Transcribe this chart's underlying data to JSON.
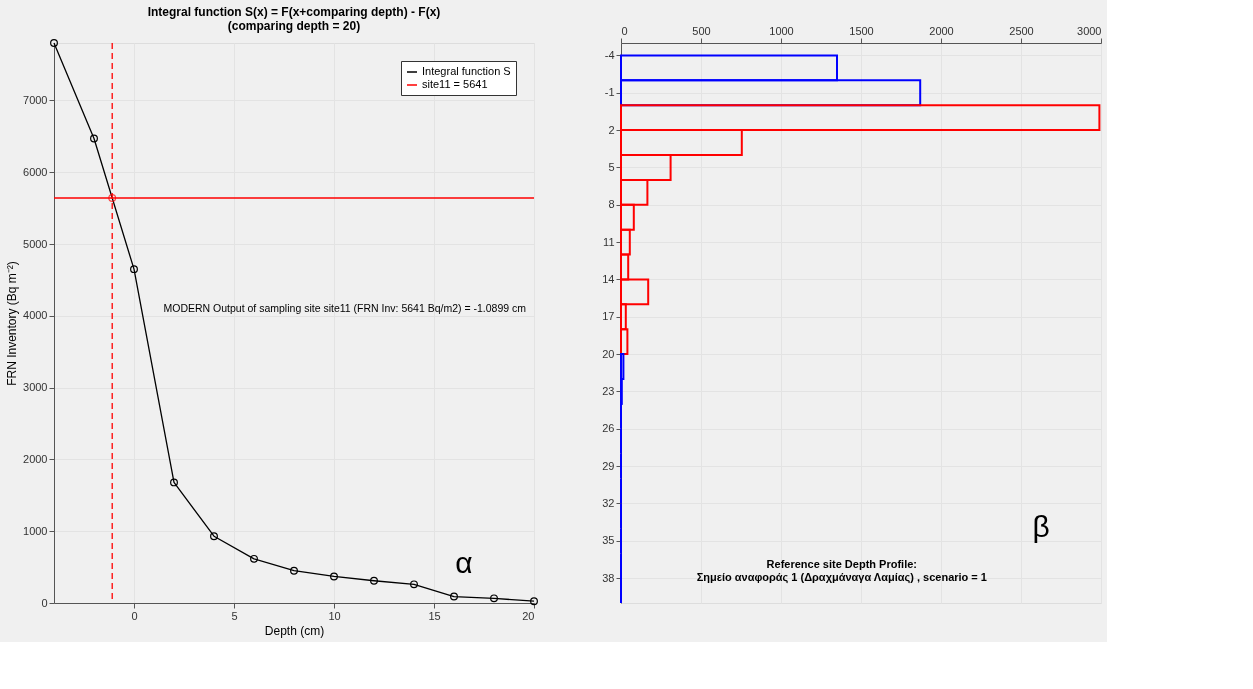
{
  "chart_data": [
    {
      "type": "line",
      "title": "Integral function S(x) = F(x+comparing depth) - F(x)\n(comparing depth = 20)",
      "xlabel": "Depth (cm)",
      "ylabel": "FRN Inventory (Bq m⁻²)",
      "x": [
        -4,
        -2,
        0,
        2,
        4,
        6,
        8,
        10,
        12,
        14,
        16,
        18,
        20
      ],
      "series": [
        {
          "name": "Integral function S",
          "color": "#000000",
          "values": [
            7800,
            6470,
            4650,
            1680,
            930,
            615,
            450,
            370,
            310,
            260,
            90,
            65,
            25
          ]
        },
        {
          "type": "scatter",
          "x": [
            -1.0899
          ],
          "color": "#ff0000",
          "values": [
            5641
          ]
        }
      ],
      "marker": "circle",
      "xlim": [
        -4,
        20
      ],
      "xticks": [
        0,
        5,
        10,
        15,
        20
      ],
      "ylim": [
        0,
        7800
      ],
      "yticks": [
        0,
        1000,
        2000,
        3000,
        4000,
        5000,
        6000,
        7000
      ],
      "ref_lines": [
        {
          "axis": "y",
          "value": 5641,
          "label": "site11 = 5641",
          "color": "#ff0000",
          "line_style": "solid"
        },
        {
          "axis": "x",
          "value": -1.0899,
          "color": "#ff0000",
          "line_style": "dashed"
        }
      ],
      "annotations": [
        "MODERN Output of sampling site site11 (FRN Inv: 5641 Bq/m2) = -1.0899 cm",
        "α"
      ],
      "legend": "top right",
      "grid": true
    },
    {
      "type": "histogram",
      "orientation": "horizontal",
      "title": "Reference site Depth Profile:\nΣημείο αναφοράς 1 (Δραχμάναγα Λαμίας) , scenario = 1",
      "bins": [
        -4,
        -2,
        0,
        2,
        4,
        6,
        8,
        10,
        12,
        14,
        16,
        18,
        20,
        22,
        24,
        26,
        28,
        30,
        32,
        34,
        36,
        38,
        40
      ],
      "values": [
        1350,
        1870,
        2990,
        755,
        310,
        165,
        80,
        55,
        45,
        170,
        30,
        40,
        15,
        5,
        0,
        0,
        0,
        0,
        0,
        0,
        0,
        0
      ],
      "colors": [
        "#0000ff",
        "#0000ff",
        "#ff0000",
        "#ff0000",
        "#ff0000",
        "#ff0000",
        "#ff0000",
        "#ff0000",
        "#ff0000",
        "#ff0000",
        "#ff0000",
        "#ff0000",
        "#0000ff",
        "#0000ff",
        "#0000ff",
        "#0000ff",
        "#0000ff",
        "#0000ff",
        "#0000ff",
        "#0000ff",
        "#0000ff",
        "#0000ff"
      ],
      "xlim": [
        0,
        3000
      ],
      "xticks": [
        0,
        500,
        1000,
        1500,
        2000,
        2500,
        3000
      ],
      "ylim": [
        40,
        -5
      ],
      "yticks": [
        -4,
        -1,
        2,
        5,
        8,
        11,
        14,
        17,
        20,
        23,
        26,
        29,
        32,
        35,
        38
      ],
      "annotations": [
        "β"
      ],
      "grid": true
    }
  ]
}
